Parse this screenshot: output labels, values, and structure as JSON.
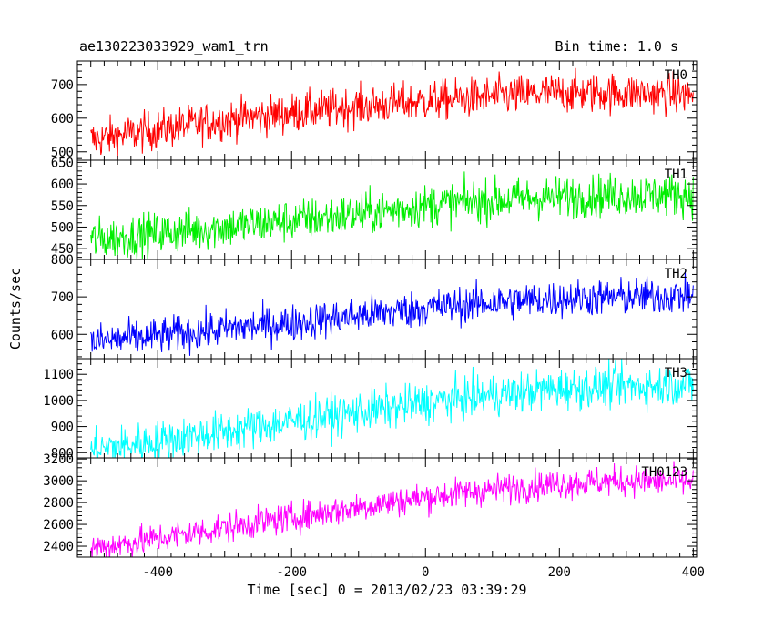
{
  "title": "ae130223033929_wam1_trn",
  "bin_time": "Bin time: 1.0 s",
  "chart_data": {
    "type": "line",
    "xlabel": "Time [sec] 0 = 2013/02/23 03:39:29",
    "ylabel": "Counts/sec",
    "xlim": [
      -520,
      405
    ],
    "x_ticks": [
      -400,
      -200,
      0,
      200,
      400
    ],
    "x_start": -500,
    "x_end": 400,
    "panels": [
      {
        "name": "TH0",
        "color": "#ff0000",
        "ylim": [
          475,
          770
        ],
        "y_ticks": [
          500,
          600,
          700
        ],
        "trend": [
          [
            -500,
            535
          ],
          [
            -400,
            565
          ],
          [
            -300,
            595
          ],
          [
            -200,
            615
          ],
          [
            -100,
            635
          ],
          [
            0,
            650
          ],
          [
            100,
            665
          ],
          [
            200,
            675
          ],
          [
            300,
            675
          ],
          [
            400,
            670
          ]
        ],
        "noise": 30
      },
      {
        "name": "TH1",
        "color": "#00ee00",
        "ylim": [
          425,
          655
        ],
        "y_ticks": [
          450,
          500,
          550,
          600,
          650
        ],
        "trend": [
          [
            -500,
            470
          ],
          [
            -400,
            485
          ],
          [
            -300,
            500
          ],
          [
            -200,
            515
          ],
          [
            -100,
            530
          ],
          [
            0,
            550
          ],
          [
            100,
            562
          ],
          [
            200,
            570
          ],
          [
            300,
            575
          ],
          [
            400,
            575
          ]
        ],
        "noise": 25
      },
      {
        "name": "TH2",
        "color": "#0000ff",
        "ylim": [
          535,
          800
        ],
        "y_ticks": [
          600,
          700,
          800
        ],
        "trend": [
          [
            -500,
            580
          ],
          [
            -400,
            595
          ],
          [
            -300,
            615
          ],
          [
            -200,
            630
          ],
          [
            -100,
            650
          ],
          [
            0,
            670
          ],
          [
            100,
            685
          ],
          [
            200,
            695
          ],
          [
            300,
            700
          ],
          [
            400,
            705
          ]
        ],
        "noise": 25
      },
      {
        "name": "TH3",
        "color": "#00ffff",
        "ylim": [
          780,
          1160
        ],
        "y_ticks": [
          800,
          900,
          1000,
          1100
        ],
        "trend": [
          [
            -500,
            810
          ],
          [
            -400,
            845
          ],
          [
            -300,
            880
          ],
          [
            -200,
            920
          ],
          [
            -100,
            955
          ],
          [
            0,
            990
          ],
          [
            100,
            1020
          ],
          [
            200,
            1045
          ],
          [
            300,
            1055
          ],
          [
            400,
            1060
          ]
        ],
        "noise": 40
      },
      {
        "name": "TH0123",
        "color": "#ff00ff",
        "ylim": [
          2300,
          3210
        ],
        "y_ticks": [
          2400,
          2600,
          2800,
          3000,
          3200
        ],
        "trend": [
          [
            -500,
            2380
          ],
          [
            -400,
            2470
          ],
          [
            -300,
            2570
          ],
          [
            -200,
            2660
          ],
          [
            -100,
            2760
          ],
          [
            0,
            2850
          ],
          [
            100,
            2920
          ],
          [
            200,
            2975
          ],
          [
            300,
            3000
          ],
          [
            400,
            2990
          ]
        ],
        "noise": 70
      }
    ]
  }
}
